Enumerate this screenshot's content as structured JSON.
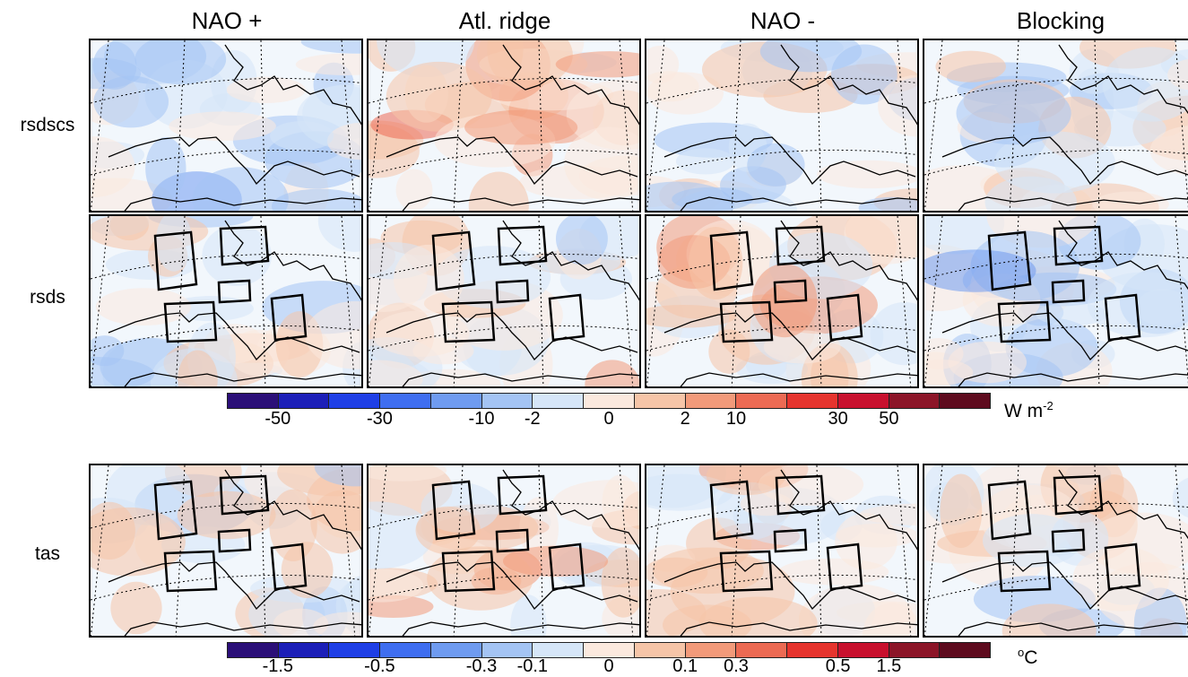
{
  "columns": [
    "NAO +",
    "Atl. ridge",
    "NAO -",
    "Blocking"
  ],
  "rows": [
    "rsdscs",
    "rsds",
    "tas"
  ],
  "colorbar_colors": [
    "#2b0f78",
    "#1c1fb8",
    "#1f3fe6",
    "#3f6ef0",
    "#6f9bf0",
    "#a4c4f4",
    "#d6e6f8",
    "#fbe9de",
    "#f6c5a8",
    "#f29a7a",
    "#ec6a53",
    "#e6342e",
    "#c8102e",
    "#8c1528",
    "#5e0b1e"
  ],
  "colorbar_wm2": {
    "ticks": [
      "-50",
      "-30",
      "-10",
      "-2",
      "0",
      "2",
      "10",
      "30",
      "50"
    ],
    "unit": "W m",
    "unit_sup": "-2"
  },
  "colorbar_tas": {
    "ticks": [
      "-1.5",
      "-0.5",
      "-0.3",
      "-0.1",
      "0",
      "0.1",
      "0.3",
      "0.5",
      "1.5"
    ],
    "unit_sup": "o",
    "unit": "C"
  }
}
